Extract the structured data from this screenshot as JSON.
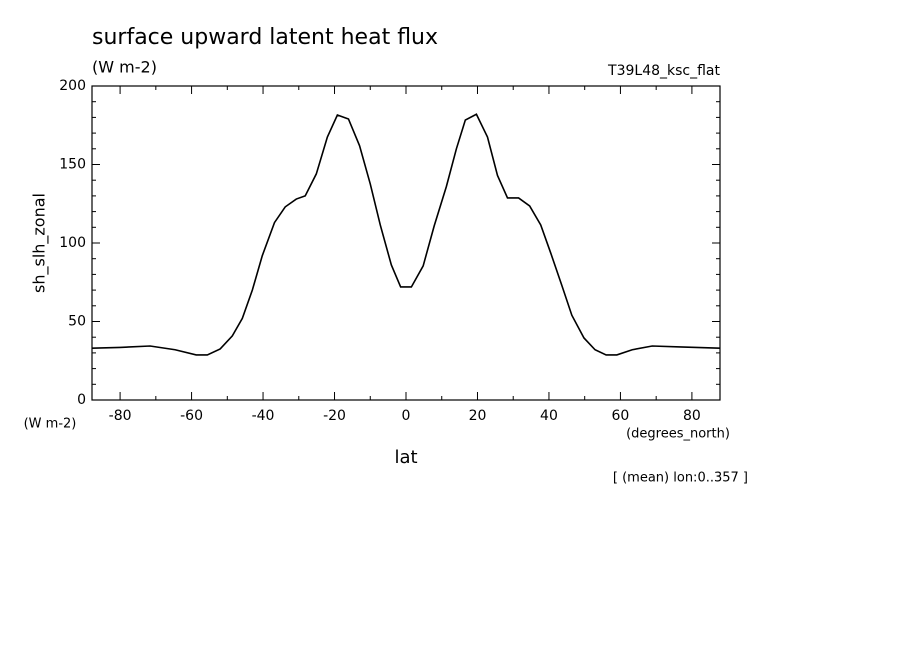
{
  "chart_data": {
    "type": "line",
    "title": "surface upward latent heat flux",
    "subtitle": "(W m-2)",
    "experiment": "T39L48_ksc_flat",
    "y_label": "sh_slh_zonal",
    "y_units": "(W m-2)",
    "x_units": "(degrees_north)",
    "x_label": "lat",
    "annotation": "[ (mean) lon:0..357 ]",
    "x": [
      -87.9,
      -80,
      -71.6,
      -64.6,
      -58.7,
      -55.6,
      -52,
      -48.6,
      -45.8,
      -43,
      -40.2,
      -36.8,
      -33.8,
      -30.7,
      -28.2,
      -25.1,
      -22,
      -19.2,
      -16.1,
      -13,
      -10,
      -7.2,
      -4.1,
      -1.5,
      1.5,
      4.8,
      7.9,
      11.3,
      14.1,
      16.6,
      19.7,
      22.8,
      25.6,
      28.4,
      31.5,
      34.6,
      37.7,
      40.5,
      43.6,
      46.4,
      49.8,
      52.9,
      56,
      59,
      63.3,
      68.9,
      76.7,
      87.9
    ],
    "series": [
      {
        "name": "sh_slh_zonal",
        "color": "#000000",
        "values": [
          33,
          33.5,
          34.4,
          32,
          28.7,
          28.7,
          32.5,
          40.8,
          52,
          70,
          92,
          113,
          123,
          128,
          130,
          144,
          167.5,
          181.5,
          179,
          162,
          137.6,
          111.5,
          86,
          72,
          72,
          85.4,
          111,
          136,
          160,
          178.3,
          182,
          167.5,
          143,
          128.7,
          128.7,
          123.6,
          111.5,
          93.6,
          73,
          54,
          39.5,
          32,
          28.7,
          28.7,
          32,
          34.4,
          33.8,
          33
        ]
      }
    ],
    "xlim": [
      -87.86,
      87.86
    ],
    "ylim": [
      0,
      200
    ],
    "xticks": [
      -80,
      -60,
      -40,
      -20,
      0,
      20,
      40,
      60,
      80
    ],
    "yticks": [
      0,
      50,
      100,
      150,
      200
    ],
    "x_minor_ticks": [
      -70,
      -50,
      -30,
      -10,
      10,
      30,
      50,
      70
    ],
    "y_minor_ticks": [
      10,
      20,
      30,
      40,
      60,
      70,
      80,
      90,
      110,
      120,
      130,
      140,
      160,
      170,
      180,
      190
    ]
  }
}
